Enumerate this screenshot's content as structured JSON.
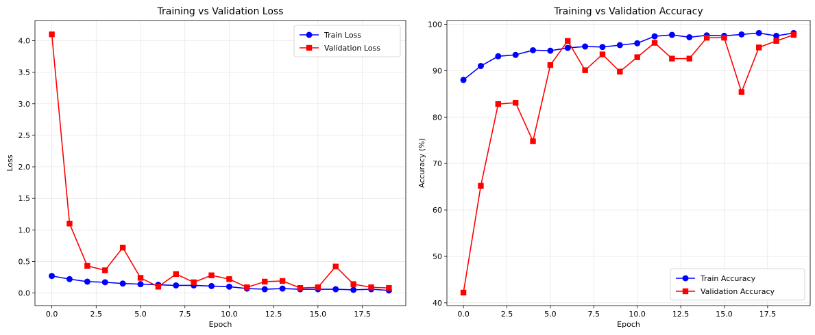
{
  "figure": {
    "background": "#ffffff"
  },
  "chart_data": [
    {
      "type": "line",
      "title": "Training vs Validation Loss",
      "xlabel": "Epoch",
      "ylabel": "Loss",
      "xlim": [
        -0.95,
        19.95
      ],
      "ylim": [
        -0.2,
        4.32
      ],
      "xticks": [
        0.0,
        2.5,
        5.0,
        7.5,
        10.0,
        12.5,
        15.0,
        17.5
      ],
      "xtick_labels": [
        "0.0",
        "2.5",
        "5.0",
        "7.5",
        "10.0",
        "12.5",
        "15.0",
        "17.5"
      ],
      "yticks": [
        0.0,
        0.5,
        1.0,
        1.5,
        2.0,
        2.5,
        3.0,
        3.5,
        4.0
      ],
      "ytick_labels": [
        "0.0",
        "0.5",
        "1.0",
        "1.5",
        "2.0",
        "2.5",
        "3.0",
        "3.5",
        "4.0"
      ],
      "grid": true,
      "legend_position": "top-right",
      "x": [
        0,
        1,
        2,
        3,
        4,
        5,
        6,
        7,
        8,
        9,
        10,
        11,
        12,
        13,
        14,
        15,
        16,
        17,
        18,
        19
      ],
      "series": [
        {
          "name": "Train Loss",
          "color": "#0000ff",
          "marker": "circle",
          "values": [
            0.27,
            0.22,
            0.18,
            0.17,
            0.15,
            0.14,
            0.13,
            0.12,
            0.12,
            0.11,
            0.1,
            0.07,
            0.06,
            0.07,
            0.06,
            0.06,
            0.06,
            0.05,
            0.06,
            0.04
          ]
        },
        {
          "name": "Validation Loss",
          "color": "#ff0000",
          "marker": "square",
          "values": [
            4.1,
            1.1,
            0.43,
            0.36,
            0.72,
            0.24,
            0.1,
            0.3,
            0.17,
            0.28,
            0.22,
            0.09,
            0.18,
            0.19,
            0.08,
            0.09,
            0.42,
            0.14,
            0.09,
            0.08
          ]
        }
      ]
    },
    {
      "type": "line",
      "title": "Training vs Validation Accuracy",
      "xlabel": "Epoch",
      "ylabel": "Accuracy (%)",
      "xlim": [
        -0.95,
        19.95
      ],
      "ylim": [
        39.4,
        100.8
      ],
      "xticks": [
        0.0,
        2.5,
        5.0,
        7.5,
        10.0,
        12.5,
        15.0,
        17.5
      ],
      "xtick_labels": [
        "0.0",
        "2.5",
        "5.0",
        "7.5",
        "10.0",
        "12.5",
        "15.0",
        "17.5"
      ],
      "yticks": [
        40,
        50,
        60,
        70,
        80,
        90,
        100
      ],
      "ytick_labels": [
        "40",
        "50",
        "60",
        "70",
        "80",
        "90",
        "100"
      ],
      "grid": true,
      "legend_position": "bottom-right",
      "x": [
        0,
        1,
        2,
        3,
        4,
        5,
        6,
        7,
        8,
        9,
        10,
        11,
        12,
        13,
        14,
        15,
        16,
        17,
        18,
        19
      ],
      "series": [
        {
          "name": "Train Accuracy",
          "color": "#0000ff",
          "marker": "circle",
          "values": [
            88.0,
            91.0,
            93.1,
            93.4,
            94.4,
            94.3,
            94.9,
            95.2,
            95.1,
            95.5,
            95.9,
            97.4,
            97.7,
            97.2,
            97.6,
            97.5,
            97.8,
            98.1,
            97.5,
            98.1
          ]
        },
        {
          "name": "Validation Accuracy",
          "color": "#ff0000",
          "marker": "square",
          "values": [
            42.2,
            65.2,
            82.8,
            83.1,
            74.8,
            91.2,
            96.4,
            90.1,
            93.5,
            89.8,
            92.9,
            96.0,
            92.6,
            92.6,
            97.1,
            97.1,
            85.4,
            95.0,
            96.4,
            97.7
          ]
        }
      ]
    }
  ]
}
